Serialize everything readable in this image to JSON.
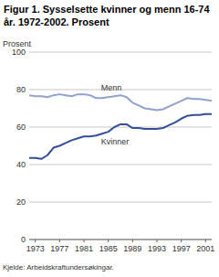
{
  "chart_data": {
    "type": "line",
    "title": "Figur 1.  Sysselsette kvinner og menn 16-74 år. 1972-2002. Prosent",
    "y_label": "Prosent",
    "source": "Kjelde: Arbeidskraftundersøkingar.",
    "x": [
      1972,
      1973,
      1974,
      1975,
      1976,
      1977,
      1978,
      1979,
      1980,
      1981,
      1982,
      1983,
      1984,
      1985,
      1986,
      1987,
      1988,
      1989,
      1990,
      1991,
      1992,
      1993,
      1994,
      1995,
      1996,
      1997,
      1998,
      1999,
      2000,
      2001,
      2002
    ],
    "series": [
      {
        "name": "Menn",
        "color": "#8fa3cc",
        "values": [
          77,
          76.5,
          76.5,
          76,
          77,
          77.5,
          77,
          76.5,
          77.5,
          77.5,
          77,
          75.5,
          75.5,
          76,
          76.5,
          77,
          76,
          73,
          71.5,
          70,
          69.5,
          69,
          69.5,
          71,
          72.5,
          74,
          75.5,
          75,
          75,
          74.5,
          74
        ]
      },
      {
        "name": "Kvinner",
        "color": "#34509a",
        "values": [
          43.5,
          43.5,
          43,
          45,
          49,
          50,
          51.5,
          53,
          54,
          55,
          55,
          55.5,
          56.5,
          57.5,
          60,
          61.5,
          61.5,
          59.5,
          59.5,
          59,
          59,
          59,
          59.5,
          61,
          62.5,
          64.5,
          66,
          66.5,
          66.5,
          67,
          67
        ]
      }
    ],
    "xlim": [
      1972,
      2002
    ],
    "xticks": [
      1973,
      1977,
      1981,
      1985,
      1989,
      1993,
      1997,
      2001
    ],
    "ylim": [
      0,
      100
    ],
    "yticks": [
      0,
      20,
      40,
      60,
      80,
      100
    ],
    "grid": true
  }
}
